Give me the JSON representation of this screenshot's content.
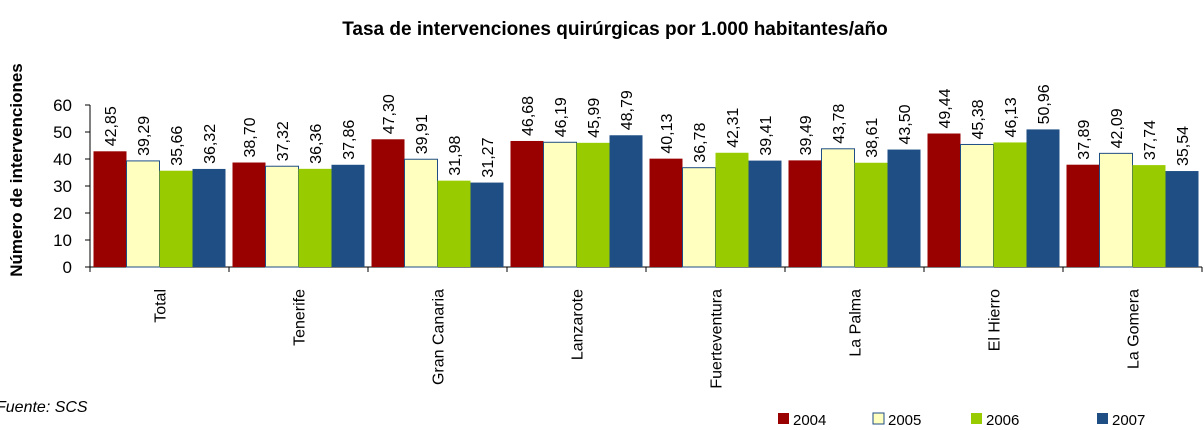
{
  "chart_data": {
    "type": "bar",
    "title": "Tasa de intervenciones  quirúrgicas por 1.000 habitantes/año",
    "y_label": "Número de intervenciones",
    "annotation": "Fuente: SCS",
    "categories": [
      "Total",
      "Tenerife",
      "Gran Canaria",
      "Lanzarote",
      "Fuerteventura",
      "La Palma",
      "El Hierro",
      "La Gomera"
    ],
    "series": [
      {
        "name": "2004",
        "color": "#990000",
        "values": [
          42.85,
          38.7,
          47.3,
          46.68,
          40.13,
          39.49,
          49.44,
          37.89
        ],
        "value_labels": [
          "42,85",
          "38,70",
          "47,30",
          "46,68",
          "40,13",
          "39,49",
          "49,44",
          "37,89"
        ]
      },
      {
        "name": "2005",
        "color": "#FFFFC0",
        "values": [
          39.29,
          37.32,
          39.91,
          46.19,
          36.78,
          43.78,
          45.38,
          42.09
        ],
        "value_labels": [
          "39,29",
          "37,32",
          "39,91",
          "46,19",
          "36,78",
          "43,78",
          "45,38",
          "42,09"
        ]
      },
      {
        "name": "2006",
        "color": "#99CC00",
        "values": [
          35.66,
          36.36,
          31.98,
          45.99,
          42.31,
          38.61,
          46.13,
          37.74
        ],
        "value_labels": [
          "35,66",
          "36,36",
          "31,98",
          "45,99",
          "42,31",
          "38,61",
          "46,13",
          "37,74"
        ]
      },
      {
        "name": "2007",
        "color": "#1F4E85",
        "values": [
          36.32,
          37.86,
          31.27,
          48.79,
          39.41,
          43.5,
          50.96,
          35.54
        ],
        "value_labels": [
          "36,32",
          "37,86",
          "31,27",
          "48,79",
          "39,41",
          "43,50",
          "50,96",
          "35,54"
        ]
      }
    ],
    "ylim": [
      0,
      60
    ],
    "yticks": [
      0,
      10,
      20,
      30,
      40,
      50,
      60
    ],
    "legend": "bottom-right"
  }
}
